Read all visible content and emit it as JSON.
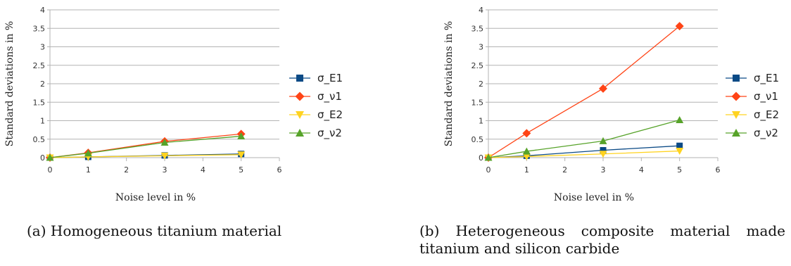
{
  "chart_data": [
    {
      "type": "line",
      "xlabel": "Noise level in %",
      "ylabel": "Standard deviations in %",
      "xlim": [
        0,
        6
      ],
      "ylim": [
        0,
        4
      ],
      "xticks": [
        "0",
        "1",
        "2",
        "3",
        "4",
        "5",
        "6"
      ],
      "yticks": [
        "0",
        "0.5",
        "1",
        "1.5",
        "2",
        "2.5",
        "3",
        "3.5",
        "4"
      ],
      "grid": "horizontal",
      "legend_position": "right",
      "x": [
        0,
        1,
        3,
        5
      ],
      "series": [
        {
          "name": "σ_E1",
          "values": [
            0,
            0.02,
            0.06,
            0.1
          ],
          "color": "#0b4a86",
          "marker": "square"
        },
        {
          "name": "σ_ν1",
          "values": [
            0,
            0.13,
            0.44,
            0.64
          ],
          "color": "#ff4416",
          "marker": "diamond"
        },
        {
          "name": "σ_E2",
          "values": [
            0,
            0.02,
            0.05,
            0.08
          ],
          "color": "#ffd320",
          "marker": "triangle-down"
        },
        {
          "name": "σ_ν2",
          "values": [
            0,
            0.12,
            0.41,
            0.58
          ],
          "color": "#57a32a",
          "marker": "triangle-up"
        }
      ],
      "caption": "(a) Homogeneous titanium material"
    },
    {
      "type": "line",
      "xlabel": "Noise level in %",
      "ylabel": "Standard deviations in %",
      "xlim": [
        0,
        6
      ],
      "ylim": [
        0,
        4
      ],
      "xticks": [
        "0",
        "1",
        "2",
        "3",
        "4",
        "5",
        "6"
      ],
      "yticks": [
        "0",
        "0.5",
        "1",
        "1.5",
        "2",
        "2.5",
        "3",
        "3.5",
        "4"
      ],
      "grid": "horizontal",
      "legend_position": "right",
      "x": [
        0,
        1,
        3,
        5
      ],
      "series": [
        {
          "name": "σ_E1",
          "values": [
            0,
            0.05,
            0.2,
            0.32
          ],
          "color": "#0b4a86",
          "marker": "square"
        },
        {
          "name": "σ_ν1",
          "values": [
            0,
            0.66,
            1.87,
            3.56
          ],
          "color": "#ff4416",
          "marker": "diamond"
        },
        {
          "name": "σ_E2",
          "values": [
            0,
            0.03,
            0.1,
            0.18
          ],
          "color": "#ffd320",
          "marker": "triangle-down"
        },
        {
          "name": "σ_ν2",
          "values": [
            0,
            0.17,
            0.45,
            1.02
          ],
          "color": "#57a32a",
          "marker": "triangle-up"
        }
      ],
      "caption": "(b) Heterogeneous composite material made titanium and silicon carbide"
    }
  ]
}
